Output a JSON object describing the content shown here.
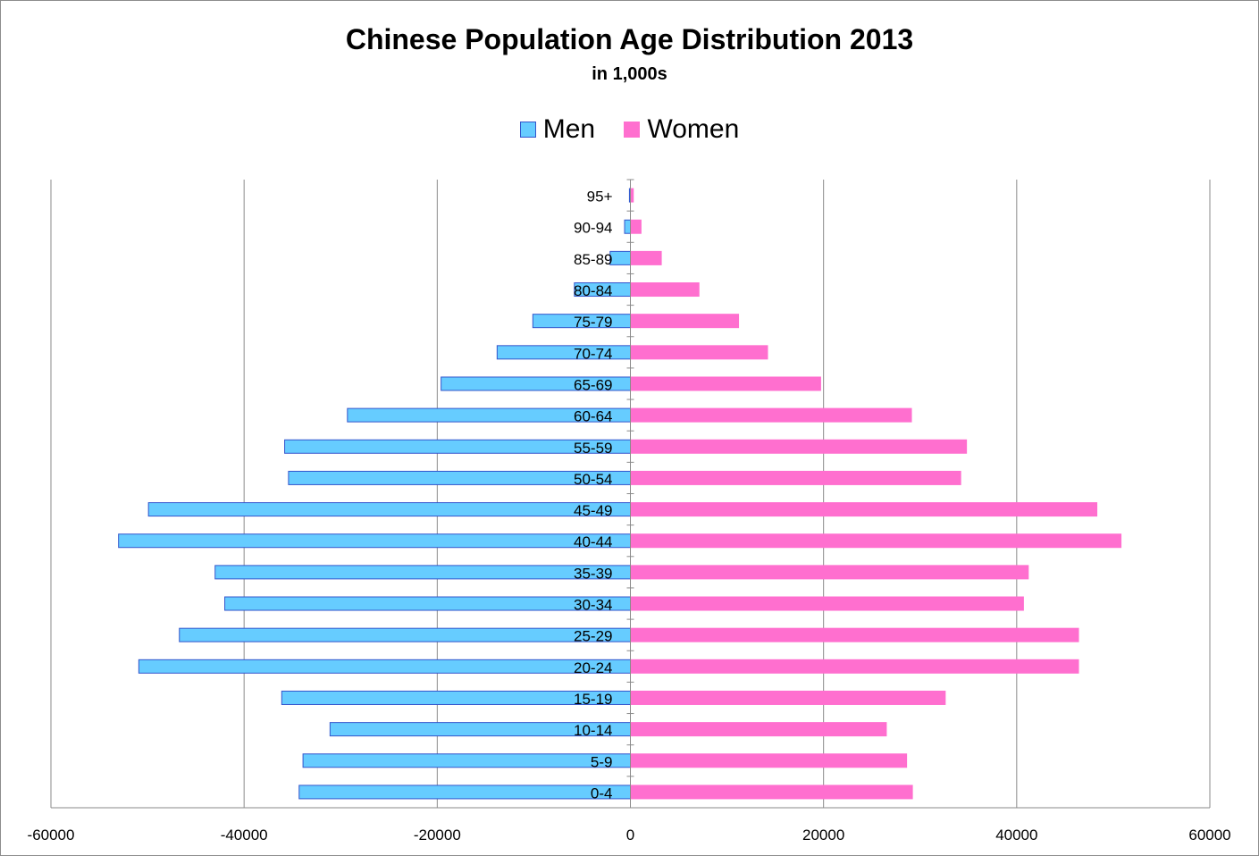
{
  "chart_data": {
    "type": "bar",
    "orientation": "horizontal",
    "layout": "population-pyramid",
    "title": "Chinese Population Age Distribution 2013",
    "subtitle": "in 1,000s",
    "categories": [
      "0-4",
      "5-9",
      "10-14",
      "15-19",
      "20-24",
      "25-29",
      "30-34",
      "35-39",
      "40-44",
      "45-49",
      "50-54",
      "55-59",
      "60-64",
      "65-69",
      "70-74",
      "75-79",
      "80-84",
      "85-89",
      "90-94",
      "95+"
    ],
    "series": [
      {
        "name": "Men",
        "color": "#66ccff",
        "border": "#3355cc",
        "values": [
          -34300,
          -33900,
          -31100,
          -36100,
          -50900,
          -46700,
          -42000,
          -43000,
          -53000,
          -49900,
          -35400,
          -35800,
          -29300,
          -19600,
          -13800,
          -10100,
          -5800,
          -2100,
          -600,
          -100
        ]
      },
      {
        "name": "Women",
        "color": "#ff6fcf",
        "border": "#ff6fcf",
        "values": [
          29200,
          28600,
          26500,
          32600,
          46400,
          46400,
          40700,
          41200,
          50800,
          48300,
          34200,
          34800,
          29100,
          19700,
          14200,
          11200,
          7100,
          3200,
          1100,
          300
        ]
      }
    ],
    "xlim": [
      -60000,
      60000
    ],
    "xticks": [
      "-60000",
      "-40000",
      "-20000",
      "0",
      "20000",
      "40000",
      "60000"
    ],
    "xtick_values": [
      -60000,
      -40000,
      -20000,
      0,
      20000,
      40000,
      60000
    ],
    "grid": true,
    "legend_position": "top"
  }
}
